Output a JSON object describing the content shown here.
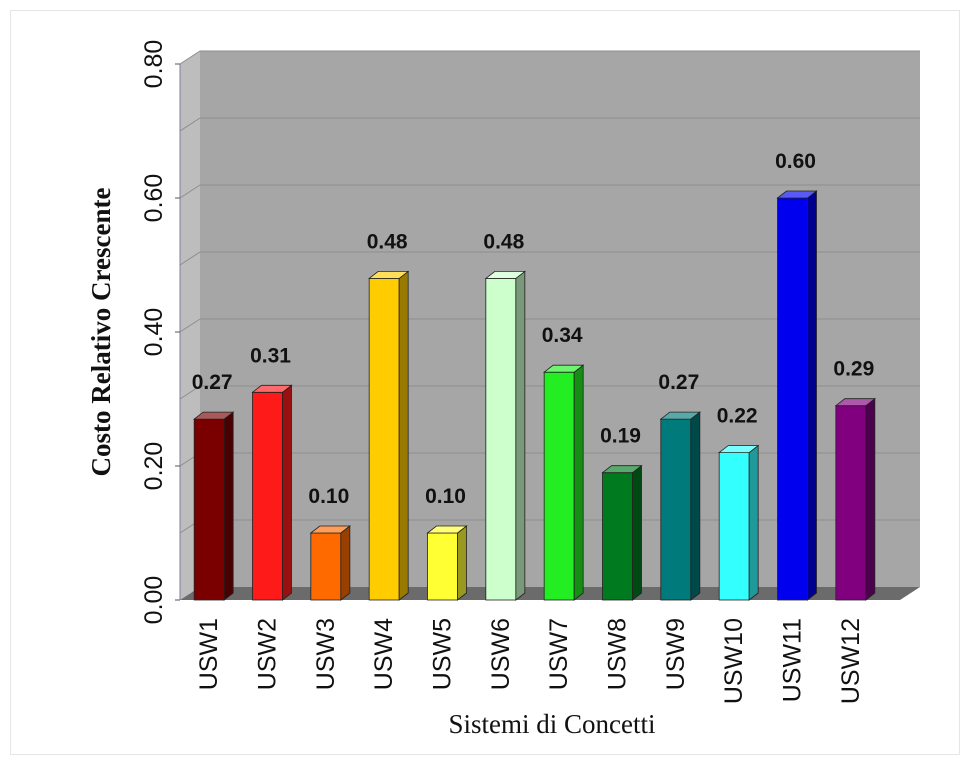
{
  "chart_data": {
    "type": "bar",
    "title": "",
    "xlabel": "Sistemi di Concetti",
    "ylabel": "Costo Relativo Crescente",
    "ylim": [
      0,
      0.8
    ],
    "y_ticks": [
      "0.00",
      "0.20",
      "0.40",
      "0.60",
      "0.80"
    ],
    "grid": true,
    "categories": [
      "USW1",
      "USW2",
      "USW3",
      "USW4",
      "USW5",
      "USW6",
      "USW7",
      "USW8",
      "USW9",
      "USW10",
      "USW11",
      "USW12"
    ],
    "values": [
      0.27,
      0.31,
      0.1,
      0.48,
      0.1,
      0.48,
      0.34,
      0.19,
      0.27,
      0.22,
      0.6,
      0.29
    ],
    "value_labels": [
      "0.27",
      "0.31",
      "0.10",
      "0.48",
      "0.10",
      "0.48",
      "0.34",
      "0.19",
      "0.27",
      "0.22",
      "0.60",
      "0.29"
    ],
    "colors": [
      "#7a0000",
      "#ff1a1a",
      "#ff6a00",
      "#ffcc00",
      "#ffff33",
      "#ccffcc",
      "#22ee22",
      "#007a1f",
      "#007a7a",
      "#33ffff",
      "#0000ee",
      "#800080"
    ],
    "plot_background": "#a6a6a6",
    "floor_color": "#6b6b6b"
  }
}
